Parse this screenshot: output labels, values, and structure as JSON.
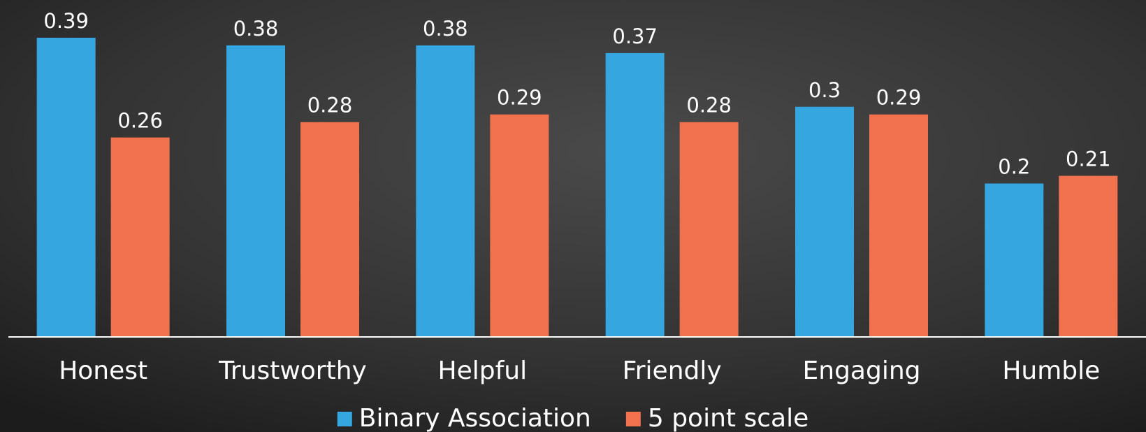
{
  "chart_data": {
    "type": "bar",
    "categories": [
      "Honest",
      "Trustworthy",
      "Helpful",
      "Friendly",
      "Engaging",
      "Humble"
    ],
    "series": [
      {
        "name": "Binary Association",
        "color": "#35a6e0",
        "values": [
          0.39,
          0.38,
          0.38,
          0.37,
          0.3,
          0.2
        ]
      },
      {
        "name": "5 point scale",
        "color": "#f2714f",
        "values": [
          0.26,
          0.28,
          0.29,
          0.28,
          0.29,
          0.21
        ]
      }
    ],
    "ylim": [
      0,
      0.4
    ],
    "legend": "bottom"
  }
}
